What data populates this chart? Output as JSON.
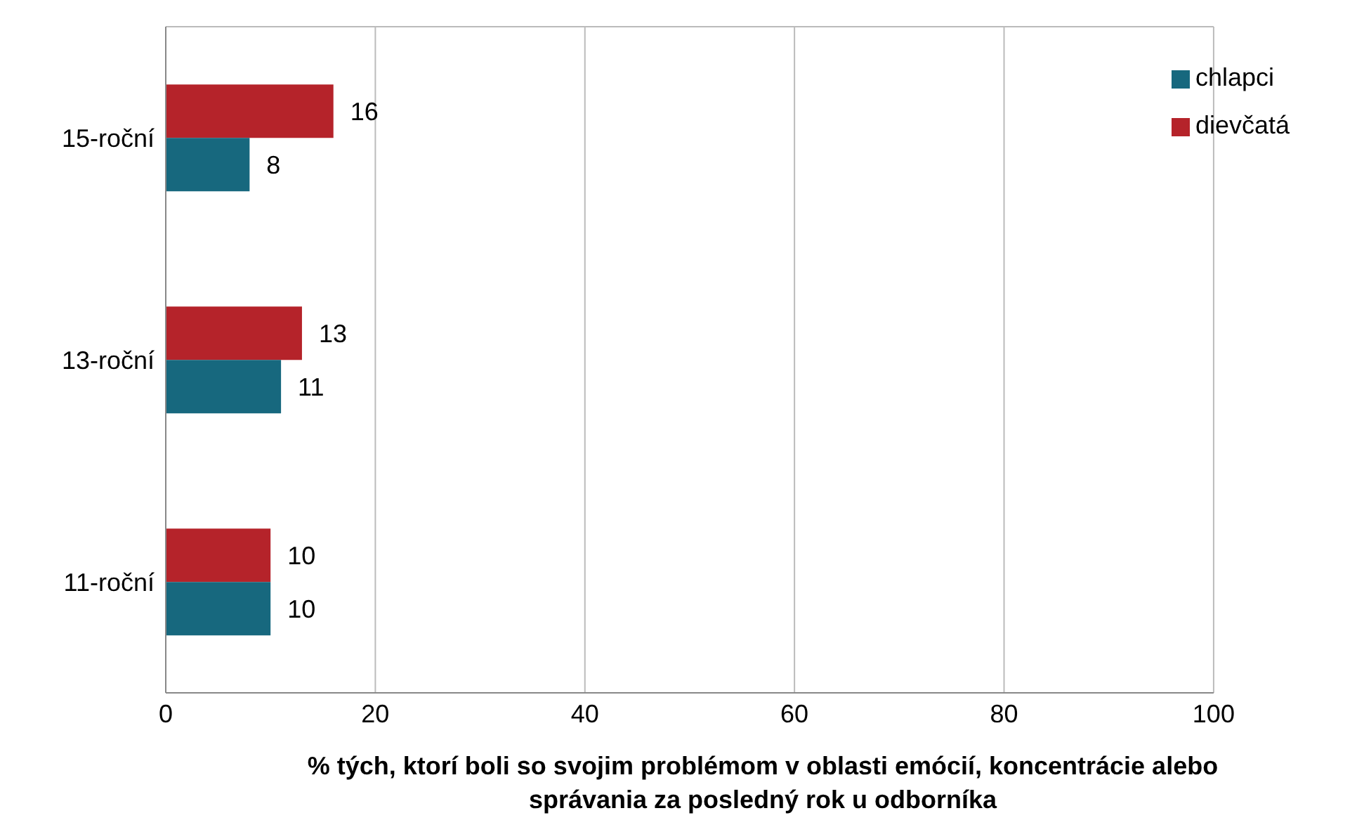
{
  "chart_data": {
    "type": "bar",
    "orientation": "horizontal",
    "categories": [
      "15-roční",
      "13-roční",
      "11-roční"
    ],
    "series": [
      {
        "name": "dievčatá",
        "color": "#b5232a",
        "values": [
          16,
          13,
          10
        ]
      },
      {
        "name": "chlapci",
        "color": "#17687e",
        "values": [
          8,
          11,
          10
        ]
      }
    ],
    "xlim": [
      0,
      100
    ],
    "xticks": [
      0,
      20,
      40,
      60,
      80,
      100
    ],
    "xlabel": "% tých, ktorí boli so svojim problémom v oblasti emócií, koncentrácie alebo správania za posledný rok u odborníka",
    "grid": "x",
    "legend": "top right",
    "data_labels": true
  }
}
